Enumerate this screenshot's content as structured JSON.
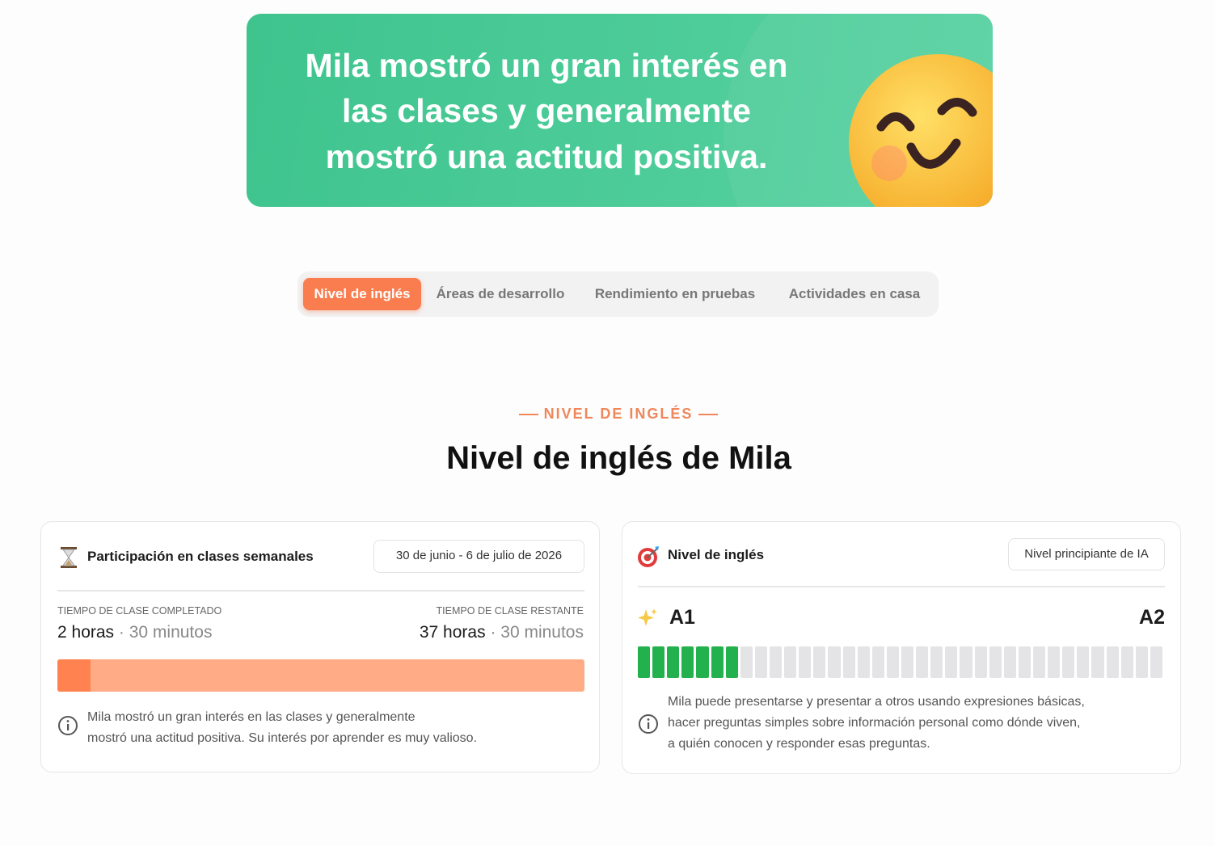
{
  "banner": {
    "lines": [
      "Mila mostró un gran interés en",
      "las clases y generalmente",
      "mostró una actitud positiva."
    ]
  },
  "tabs": [
    "Nivel de inglés",
    "Áreas de desarrollo",
    "Rendimiento en pruebas",
    "Actividades en casa"
  ],
  "section": {
    "eyebrow": "NIVEL DE INGLÉS",
    "title": "Nivel de inglés de Mila"
  },
  "participation": {
    "title": "Participación en clases semanales",
    "date_range": "30 de junio - 6 de julio de 2026",
    "completed_label": "TIEMPO DE CLASE COMPLETADO",
    "completed_hours": "2 horas",
    "completed_minutes": "· 30 minutos",
    "remaining_label": "TIEMPO DE CLASE RESTANTE",
    "remaining_hours": "37 horas",
    "remaining_minutes": "· 30 minutos",
    "completed_percent": 6.25,
    "note_lines": [
      "Mila mostró un gran interés en las clases y generalmente",
      "mostró una actitud positiva. Su interés por aprender es muy valioso."
    ]
  },
  "english_level": {
    "title": "Nivel de inglés",
    "badge": "Nivel principiante de IA",
    "current_level": "A1",
    "next_level": "A2",
    "segments_filled": 7,
    "segments_total": 36,
    "note_lines": [
      "Mila puede presentarse y presentar a otros usando expresiones básicas,",
      "hacer preguntas simples sobre información personal como dónde viven,",
      "a quién conocen y responder esas preguntas."
    ]
  }
}
